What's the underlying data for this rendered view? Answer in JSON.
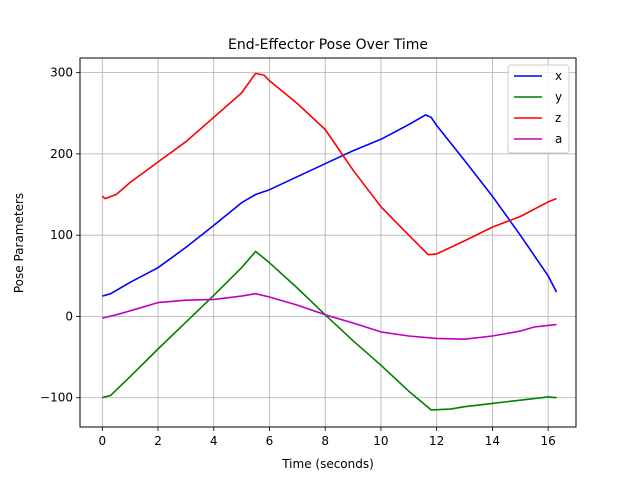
{
  "chart_data": {
    "type": "line",
    "title": "End-Effector Pose Over Time",
    "xlabel": "Time (seconds)",
    "ylabel": "Pose Parameters",
    "xlim": [
      -0.8,
      17.0
    ],
    "ylim": [
      -136,
      318
    ],
    "xticks": [
      0,
      2,
      4,
      6,
      8,
      10,
      12,
      14,
      16
    ],
    "yticks": [
      -100,
      0,
      100,
      200,
      300
    ],
    "ytick_labels": [
      "−100",
      "0",
      "100",
      "200",
      "300"
    ],
    "grid": true,
    "legend_position": "top-right",
    "series": [
      {
        "name": "x",
        "color": "#0000ff",
        "points": [
          [
            0,
            25
          ],
          [
            0.3,
            28
          ],
          [
            1,
            42
          ],
          [
            2,
            60
          ],
          [
            3,
            85
          ],
          [
            4,
            112
          ],
          [
            5,
            140
          ],
          [
            5.5,
            150
          ],
          [
            6,
            156
          ],
          [
            7,
            172
          ],
          [
            8,
            188
          ],
          [
            9,
            204
          ],
          [
            10,
            218
          ],
          [
            11,
            236
          ],
          [
            11.6,
            248
          ],
          [
            11.8,
            245
          ],
          [
            12,
            235
          ],
          [
            13,
            192
          ],
          [
            14,
            148
          ],
          [
            15,
            100
          ],
          [
            16,
            50
          ],
          [
            16.3,
            30
          ]
        ]
      },
      {
        "name": "y",
        "color": "#008000",
        "points": [
          [
            0,
            -100
          ],
          [
            0.3,
            -97
          ],
          [
            1,
            -74
          ],
          [
            2,
            -40
          ],
          [
            3,
            -7
          ],
          [
            4,
            26
          ],
          [
            5,
            60
          ],
          [
            5.5,
            80
          ],
          [
            6,
            66
          ],
          [
            7,
            35
          ],
          [
            8,
            2
          ],
          [
            9,
            -30
          ],
          [
            10,
            -60
          ],
          [
            11,
            -92
          ],
          [
            11.8,
            -115
          ],
          [
            12.5,
            -114
          ],
          [
            13,
            -111
          ],
          [
            14,
            -107
          ],
          [
            15,
            -103
          ],
          [
            16,
            -99
          ],
          [
            16.3,
            -100
          ]
        ]
      },
      {
        "name": "z",
        "color": "#ff0000",
        "points": [
          [
            0,
            148
          ],
          [
            0.1,
            145
          ],
          [
            0.5,
            150
          ],
          [
            1,
            165
          ],
          [
            2,
            190
          ],
          [
            3,
            215
          ],
          [
            4,
            245
          ],
          [
            5,
            275
          ],
          [
            5.5,
            299
          ],
          [
            5.8,
            297
          ],
          [
            6,
            290
          ],
          [
            7,
            262
          ],
          [
            8,
            230
          ],
          [
            9,
            180
          ],
          [
            10,
            135
          ],
          [
            11,
            100
          ],
          [
            11.7,
            76
          ],
          [
            12,
            77
          ],
          [
            12.5,
            85
          ],
          [
            13,
            93
          ],
          [
            14,
            110
          ],
          [
            15,
            123
          ],
          [
            16,
            141
          ],
          [
            16.3,
            145
          ]
        ]
      },
      {
        "name": "a",
        "color": "#bf00bf",
        "points": [
          [
            0,
            -2
          ],
          [
            0.5,
            2
          ],
          [
            1,
            7
          ],
          [
            2,
            17
          ],
          [
            3,
            20
          ],
          [
            4,
            21
          ],
          [
            5,
            25
          ],
          [
            5.5,
            28
          ],
          [
            6,
            24
          ],
          [
            7,
            14
          ],
          [
            8,
            2
          ],
          [
            9,
            -8
          ],
          [
            10,
            -19
          ],
          [
            11,
            -24
          ],
          [
            12,
            -27
          ],
          [
            13,
            -28
          ],
          [
            14,
            -24
          ],
          [
            15,
            -18
          ],
          [
            15.5,
            -13
          ],
          [
            16,
            -11
          ],
          [
            16.3,
            -10
          ]
        ]
      }
    ]
  }
}
